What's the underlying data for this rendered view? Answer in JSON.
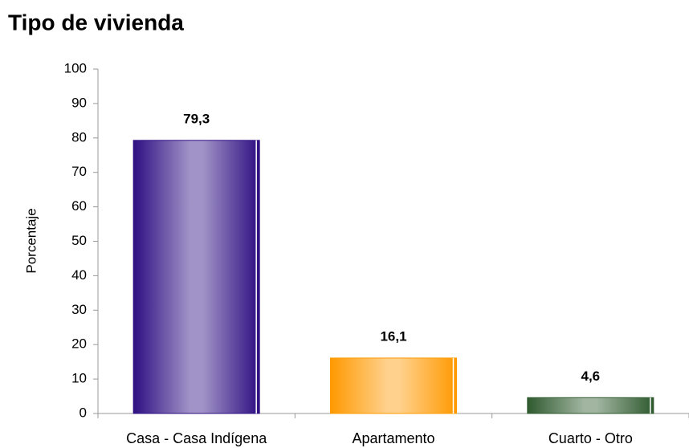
{
  "chart_data": {
    "type": "bar",
    "title": "Tipo de vivienda",
    "ylabel": "Porcentaje",
    "categories": [
      "Casa - Casa Indígena",
      "Apartamento",
      "Cuarto - Otro"
    ],
    "values": [
      79.3,
      16.1,
      4.6
    ],
    "value_labels": [
      "79,3",
      "16,1",
      "4,6"
    ],
    "colors": [
      "#2e0f82",
      "#ff9900",
      "#2f5a2f"
    ],
    "ylim": [
      0,
      100
    ],
    "yticks": [
      0,
      10,
      20,
      30,
      40,
      50,
      60,
      70,
      80,
      90,
      100
    ]
  }
}
